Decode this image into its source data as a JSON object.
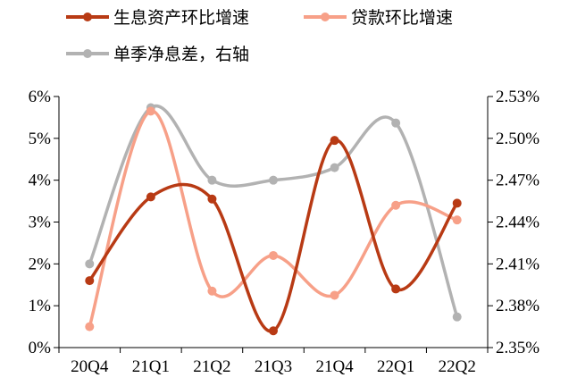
{
  "chart_data": {
    "type": "line",
    "categories": [
      "20Q4",
      "21Q1",
      "21Q2",
      "21Q3",
      "21Q4",
      "22Q1",
      "22Q2"
    ],
    "left_axis": {
      "ylim": [
        0,
        6
      ],
      "ticks": [
        0,
        1,
        2,
        3,
        4,
        5,
        6
      ],
      "tick_labels": [
        "0%",
        "1%",
        "2%",
        "3%",
        "4%",
        "5%",
        "6%"
      ]
    },
    "right_axis": {
      "ylim": [
        2.35,
        2.53
      ],
      "ticks": [
        2.35,
        2.38,
        2.41,
        2.44,
        2.47,
        2.5,
        2.53
      ],
      "tick_labels": [
        "2.35%",
        "2.38%",
        "2.41%",
        "2.44%",
        "2.47%",
        "2.50%",
        "2.53%"
      ]
    },
    "series": [
      {
        "name": "生息资产环比增速",
        "axis": "left",
        "unit": "%",
        "color": "#B83A14",
        "values": [
          1.6,
          3.6,
          3.55,
          0.4,
          4.95,
          1.4,
          3.45
        ]
      },
      {
        "name": "贷款环比增速",
        "axis": "left",
        "unit": "%",
        "color": "#F7A088",
        "values": [
          0.5,
          5.65,
          1.35,
          2.2,
          1.25,
          3.4,
          3.05
        ]
      },
      {
        "name": "单季净息差，右轴",
        "axis": "right",
        "unit": "%",
        "color": "#B2B2B2",
        "values": [
          2.41,
          2.522,
          2.47,
          2.47,
          2.479,
          2.511,
          2.372
        ]
      }
    ],
    "legend": {
      "placement": "top",
      "items": [
        "生息资产环比增速",
        "贷款环比增速",
        "单季净息差，右轴"
      ]
    },
    "grid": false,
    "smooth": true,
    "markers": "circle"
  }
}
